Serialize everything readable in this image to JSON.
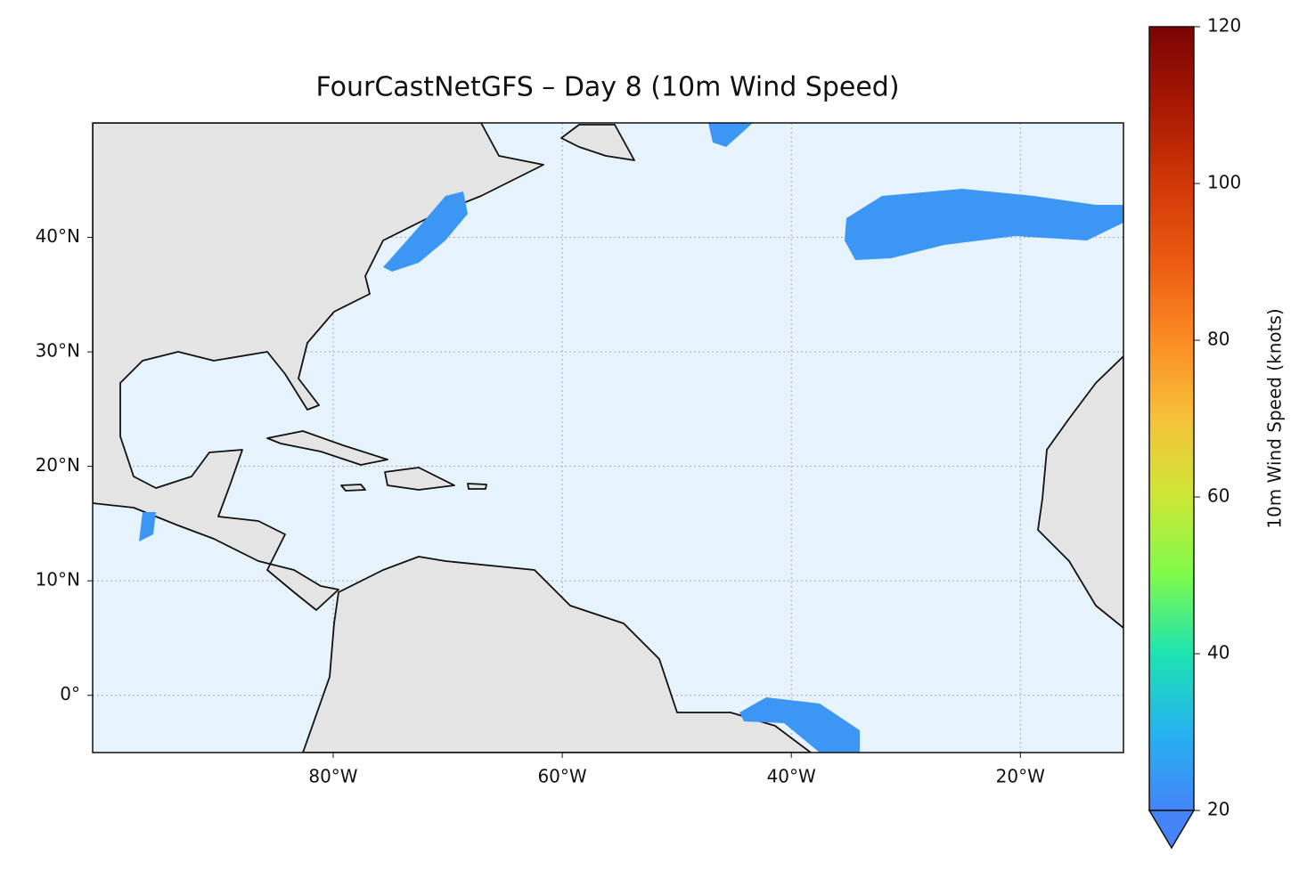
{
  "chart_data": {
    "type": "map",
    "title": "FourCastNetGFS – Day 8 (10m Wind Speed)",
    "xlim": [
      -101,
      -11
    ],
    "ylim": [
      -5,
      50
    ],
    "xticks": [
      {
        "value": -80,
        "label": "80°W"
      },
      {
        "value": -60,
        "label": "60°W"
      },
      {
        "value": -40,
        "label": "40°W"
      },
      {
        "value": -20,
        "label": "20°W"
      }
    ],
    "yticks": [
      {
        "value": 0,
        "label": "0°"
      },
      {
        "value": 10,
        "label": "10°N"
      },
      {
        "value": 20,
        "label": "20°N"
      },
      {
        "value": 30,
        "label": "30°N"
      },
      {
        "value": 40,
        "label": "40°N"
      }
    ],
    "grid": true,
    "colorbar": {
      "label": "10m Wind Speed (knots)",
      "lim": [
        20,
        120
      ],
      "ticks": [
        20,
        40,
        60,
        80,
        100,
        120
      ]
    }
  }
}
